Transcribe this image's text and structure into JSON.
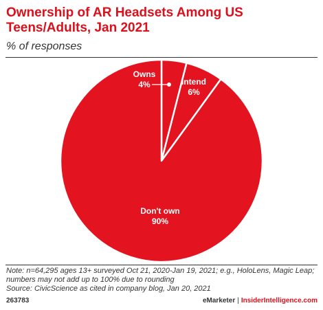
{
  "header": {
    "title": "Ownership of AR Headsets Among US Teens/Adults, Jan 2021",
    "subtitle": "% of responses"
  },
  "chart_data": {
    "type": "pie",
    "title": "Ownership of AR Headsets Among US Teens/Adults, Jan 2021",
    "subtitle": "% of responses",
    "slices": [
      {
        "label": "Owns",
        "value": 4,
        "value_label": "4%"
      },
      {
        "label": "Intend",
        "value": 6,
        "value_label": "6%"
      },
      {
        "label": "Don't own",
        "value": 90,
        "value_label": "90%"
      }
    ],
    "colors": {
      "fill": "#e3131f",
      "divider": "#ffffff"
    }
  },
  "footer": {
    "note_line1": "Note: n=64,295 ages 13+ surveyed Oct 21, 2020-Jan 19, 2021; e.g., HoloLens, Magic Leap;",
    "note_line2": "numbers may not add up to 100% due to rounding",
    "source": "Source: CivicScience as cited in company blog, Jan 20, 2021",
    "chart_id": "263783",
    "brand_left": "eMarketer",
    "brand_sep": "|",
    "brand_right": "InsiderIntelligence.com"
  }
}
